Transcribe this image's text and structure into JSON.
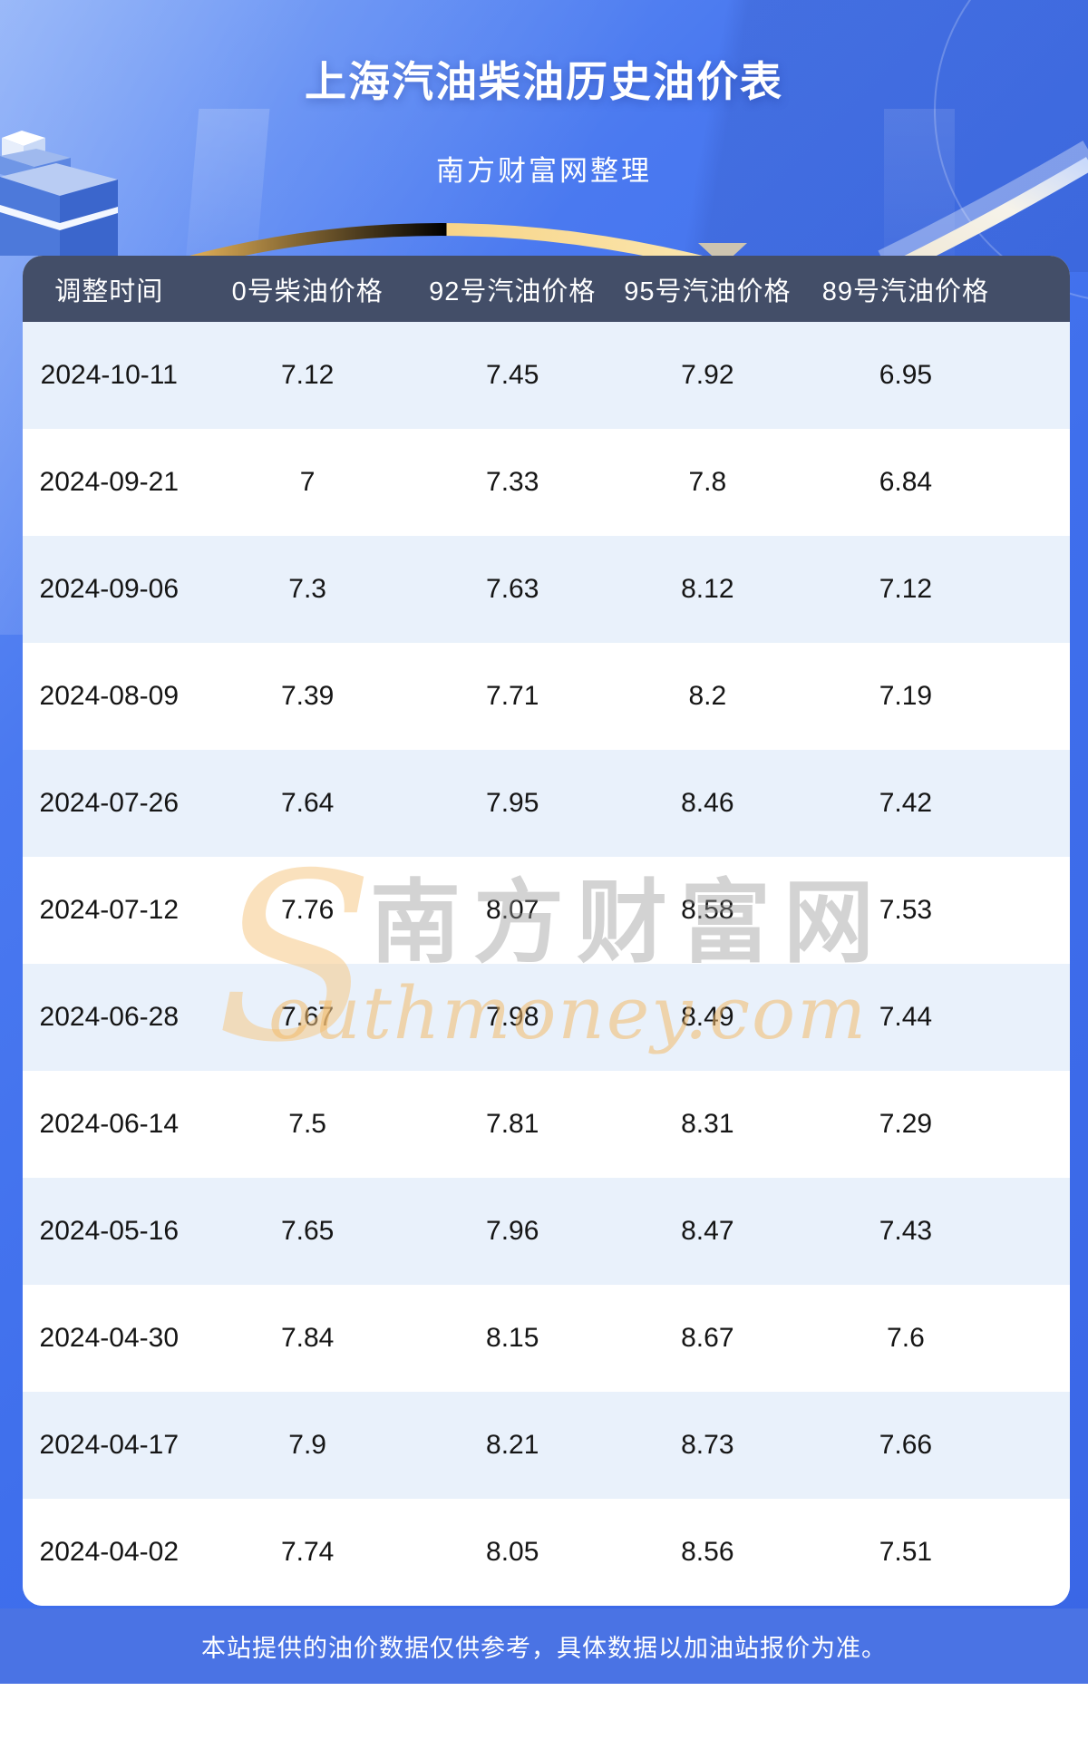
{
  "page": {
    "title": "上海汽油柴油历史油价表",
    "subtitle": "南方财富网整理",
    "footer_note": "本站提供的油价数据仅供参考，具体数据以加油站报价为准。"
  },
  "watermark": {
    "initial": "S",
    "site_name_cn": "南方财富网",
    "site_domain_rest": "outhmoney.com"
  },
  "colors": {
    "background_blue": "#4273ee",
    "header_bar": "#434e68",
    "row_alt_blue": "#e9f1fb",
    "footer_band_blue": "#4a73e4",
    "gold_accent": "#f2c977",
    "watermark_orange": "#f3b969",
    "watermark_gray": "#969696"
  },
  "chart_data": {
    "type": "table",
    "title": "上海汽油柴油历史油价表",
    "subtitle": "南方财富网整理",
    "columns": [
      "调整时间",
      "0号柴油价格",
      "92号汽油价格",
      "95号汽油价格",
      "89号汽油价格"
    ],
    "rows": [
      [
        "2024-10-11",
        7.12,
        7.45,
        7.92,
        6.95
      ],
      [
        "2024-09-21",
        7,
        7.33,
        7.8,
        6.84
      ],
      [
        "2024-09-06",
        7.3,
        7.63,
        8.12,
        7.12
      ],
      [
        "2024-08-09",
        7.39,
        7.71,
        8.2,
        7.19
      ],
      [
        "2024-07-26",
        7.64,
        7.95,
        8.46,
        7.42
      ],
      [
        "2024-07-12",
        7.76,
        8.07,
        8.58,
        7.53
      ],
      [
        "2024-06-28",
        7.67,
        7.98,
        8.49,
        7.44
      ],
      [
        "2024-06-14",
        7.5,
        7.81,
        8.31,
        7.29
      ],
      [
        "2024-05-16",
        7.65,
        7.96,
        8.47,
        7.43
      ],
      [
        "2024-04-30",
        7.84,
        8.15,
        8.67,
        7.6
      ],
      [
        "2024-04-17",
        7.9,
        8.21,
        8.73,
        7.66
      ],
      [
        "2024-04-02",
        7.74,
        8.05,
        8.56,
        7.51
      ]
    ]
  }
}
